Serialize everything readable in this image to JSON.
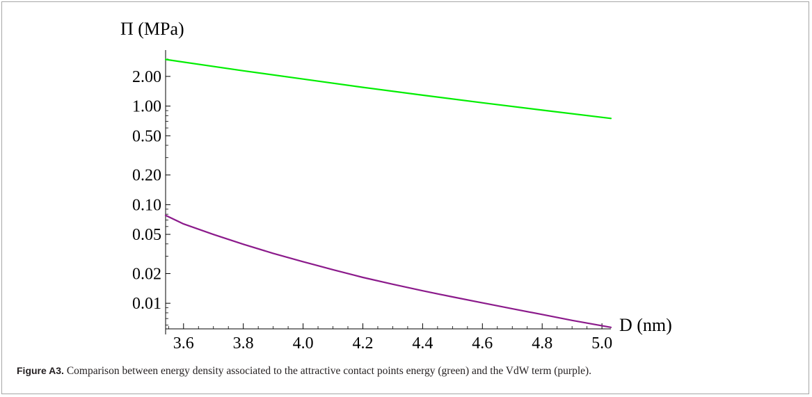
{
  "chart_data": {
    "type": "line",
    "ylabel": "Π (MPa)",
    "xlabel": "D (nm)",
    "yscale": "log",
    "xlim": [
      3.54,
      5.03
    ],
    "ylim": [
      0.0055,
      3.7
    ],
    "x_ticks": [
      3.6,
      3.8,
      4.0,
      4.2,
      4.4,
      4.6,
      4.8,
      5.0
    ],
    "x_tick_labels": [
      "3.6",
      "3.8",
      "4.0",
      "4.2",
      "4.4",
      "4.6",
      "4.8",
      "5.0"
    ],
    "y_ticks": [
      0.01,
      0.02,
      0.05,
      0.1,
      0.2,
      0.5,
      1,
      2
    ],
    "y_tick_labels": [
      "0.01",
      "0.02",
      "0.05",
      "0.10",
      "0.20",
      "0.50",
      "1.00",
      "2.00"
    ],
    "series": [
      {
        "color": "#00ee00",
        "x": [
          3.54,
          3.8,
          4.0,
          4.2,
          4.4,
          4.6,
          4.8,
          5.03
        ],
        "y": [
          2.97,
          2.28,
          1.88,
          1.55,
          1.29,
          1.08,
          0.91,
          0.75
        ]
      },
      {
        "color": "#8b1a8b",
        "x": [
          3.54,
          3.6,
          3.7,
          3.8,
          3.9,
          4.0,
          4.1,
          4.2,
          4.3,
          4.4,
          4.5,
          4.6,
          4.7,
          4.8,
          4.9,
          5.03
        ],
        "y": [
          0.078,
          0.0638,
          0.0499,
          0.0397,
          0.0321,
          0.0264,
          0.0219,
          0.0183,
          0.0156,
          0.0134,
          0.0116,
          0.0101,
          0.0088,
          0.0077,
          0.0067,
          0.0057
        ]
      }
    ]
  },
  "caption": {
    "label": "Figure A3.",
    "text": " Comparison between energy density associated to the attractive contact points energy (green) and the VdW term (purple)."
  }
}
